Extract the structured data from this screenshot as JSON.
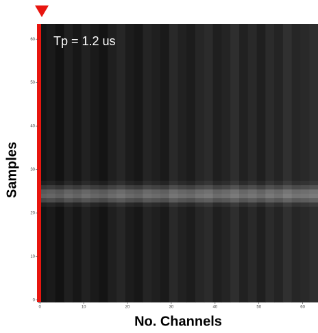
{
  "chart_data": {
    "type": "heatmap",
    "annotation": "Tp = 1.2 us",
    "x_label": "No. Channels",
    "y_label": "Samples",
    "colormap": "gray",
    "zlim": [
      0,
      1
    ],
    "xlim": [
      -0.5,
      63.5
    ],
    "ylim": [
      -0.5,
      63.5
    ],
    "xticks": [
      0,
      10,
      20,
      30,
      40,
      50,
      60
    ],
    "yticks": [
      0,
      10,
      20,
      30,
      40,
      50,
      60
    ],
    "xbins": [
      -0.5,
      1.5,
      3.5,
      5.5,
      7.5,
      9.5,
      11.5,
      13.5,
      15.5,
      17.5,
      19.5,
      21.5,
      23.5,
      25.5,
      27.5,
      29.5,
      31.5,
      33.5,
      35.5,
      37.5,
      39.5,
      41.5,
      43.5,
      45.5,
      47.5,
      49.5,
      51.5,
      53.5,
      55.5,
      57.5,
      59.5,
      61.5,
      63.5
    ],
    "ybins": [
      -0.5,
      21.5,
      22.5,
      23.5,
      24.5,
      25.5,
      26.5,
      27.5,
      63.5
    ],
    "z": [
      [
        0.08,
        0.1,
        0.07,
        0.12,
        0.09,
        0.13,
        0.1,
        0.08,
        0.12,
        0.15,
        0.11,
        0.09,
        0.14,
        0.12,
        0.1,
        0.16,
        0.13,
        0.11,
        0.15,
        0.17,
        0.12,
        0.14,
        0.18,
        0.13,
        0.16,
        0.12,
        0.17,
        0.14,
        0.19,
        0.15,
        0.16,
        0.18
      ],
      [
        0.13,
        0.15,
        0.12,
        0.17,
        0.14,
        0.18,
        0.15,
        0.13,
        0.17,
        0.2,
        0.16,
        0.14,
        0.19,
        0.17,
        0.15,
        0.21,
        0.18,
        0.16,
        0.2,
        0.22,
        0.17,
        0.19,
        0.23,
        0.18,
        0.21,
        0.17,
        0.22,
        0.19,
        0.24,
        0.2,
        0.21,
        0.23
      ],
      [
        0.28,
        0.3,
        0.27,
        0.32,
        0.29,
        0.33,
        0.3,
        0.28,
        0.32,
        0.35,
        0.31,
        0.29,
        0.34,
        0.32,
        0.3,
        0.36,
        0.33,
        0.31,
        0.35,
        0.37,
        0.32,
        0.34,
        0.38,
        0.33,
        0.36,
        0.32,
        0.37,
        0.34,
        0.39,
        0.35,
        0.36,
        0.38
      ],
      [
        0.38,
        0.4,
        0.37,
        0.42,
        0.39,
        0.43,
        0.4,
        0.38,
        0.42,
        0.45,
        0.41,
        0.39,
        0.44,
        0.42,
        0.4,
        0.46,
        0.43,
        0.41,
        0.45,
        0.47,
        0.42,
        0.44,
        0.48,
        0.43,
        0.46,
        0.42,
        0.47,
        0.44,
        0.49,
        0.45,
        0.46,
        0.48
      ],
      [
        0.35,
        0.37,
        0.34,
        0.39,
        0.36,
        0.4,
        0.37,
        0.35,
        0.39,
        0.42,
        0.38,
        0.36,
        0.41,
        0.39,
        0.37,
        0.43,
        0.4,
        0.38,
        0.42,
        0.44,
        0.39,
        0.41,
        0.45,
        0.4,
        0.43,
        0.39,
        0.44,
        0.41,
        0.46,
        0.42,
        0.43,
        0.45
      ],
      [
        0.22,
        0.24,
        0.21,
        0.26,
        0.23,
        0.27,
        0.24,
        0.22,
        0.26,
        0.29,
        0.25,
        0.23,
        0.28,
        0.26,
        0.24,
        0.3,
        0.27,
        0.25,
        0.29,
        0.31,
        0.26,
        0.28,
        0.32,
        0.27,
        0.3,
        0.26,
        0.31,
        0.28,
        0.33,
        0.29,
        0.3,
        0.32
      ],
      [
        0.12,
        0.14,
        0.11,
        0.16,
        0.13,
        0.17,
        0.14,
        0.12,
        0.16,
        0.19,
        0.15,
        0.13,
        0.18,
        0.16,
        0.14,
        0.2,
        0.17,
        0.15,
        0.19,
        0.21,
        0.16,
        0.18,
        0.22,
        0.17,
        0.2,
        0.16,
        0.21,
        0.18,
        0.23,
        0.19,
        0.2,
        0.22
      ],
      [
        0.08,
        0.1,
        0.07,
        0.12,
        0.09,
        0.13,
        0.1,
        0.08,
        0.12,
        0.15,
        0.11,
        0.09,
        0.14,
        0.12,
        0.1,
        0.16,
        0.13,
        0.11,
        0.15,
        0.17,
        0.12,
        0.14,
        0.18,
        0.13,
        0.16,
        0.12,
        0.17,
        0.14,
        0.19,
        0.15,
        0.16,
        0.18
      ]
    ]
  }
}
